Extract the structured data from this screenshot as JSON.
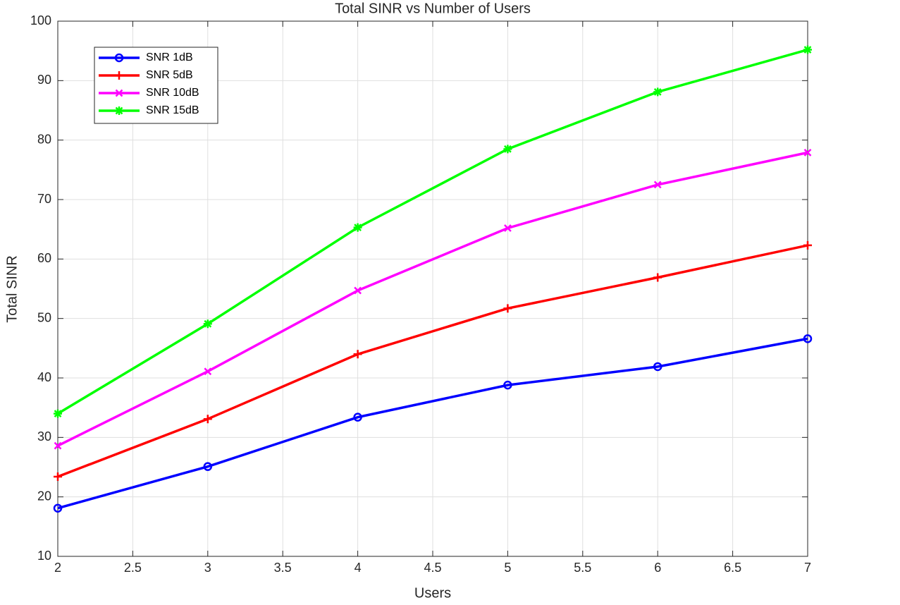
{
  "chart_data": {
    "type": "line",
    "title": "Total SINR vs Number of Users",
    "x_label": "Users",
    "y_label": "Total SINR",
    "x": [
      2,
      3,
      4,
      5,
      6,
      7
    ],
    "series": [
      {
        "name": "SNR 1dB",
        "color": "#0000ff",
        "marker": "o",
        "values": [
          18.1,
          25.1,
          33.4,
          38.8,
          41.9,
          46.6
        ]
      },
      {
        "name": "SNR 5dB",
        "color": "#ff0000",
        "marker": "+",
        "values": [
          23.4,
          33.1,
          44.0,
          51.7,
          56.9,
          62.3
        ]
      },
      {
        "name": "SNR 10dB",
        "color": "#ff00ff",
        "marker": "x",
        "values": [
          28.6,
          41.1,
          54.7,
          65.2,
          72.5,
          77.9
        ]
      },
      {
        "name": "SNR 15dB",
        "color": "#00ff00",
        "marker": "*",
        "values": [
          34.0,
          49.1,
          65.3,
          78.5,
          88.1,
          95.2
        ]
      }
    ],
    "xlim": [
      2,
      7
    ],
    "xticks": [
      2,
      2.5,
      3,
      3.5,
      4,
      4.5,
      5,
      5.5,
      6,
      6.5,
      7
    ],
    "ylim": [
      10,
      100
    ],
    "yticks": [
      10,
      20,
      30,
      40,
      50,
      60,
      70,
      80,
      90,
      100
    ],
    "grid": true,
    "legend": "northwest"
  }
}
